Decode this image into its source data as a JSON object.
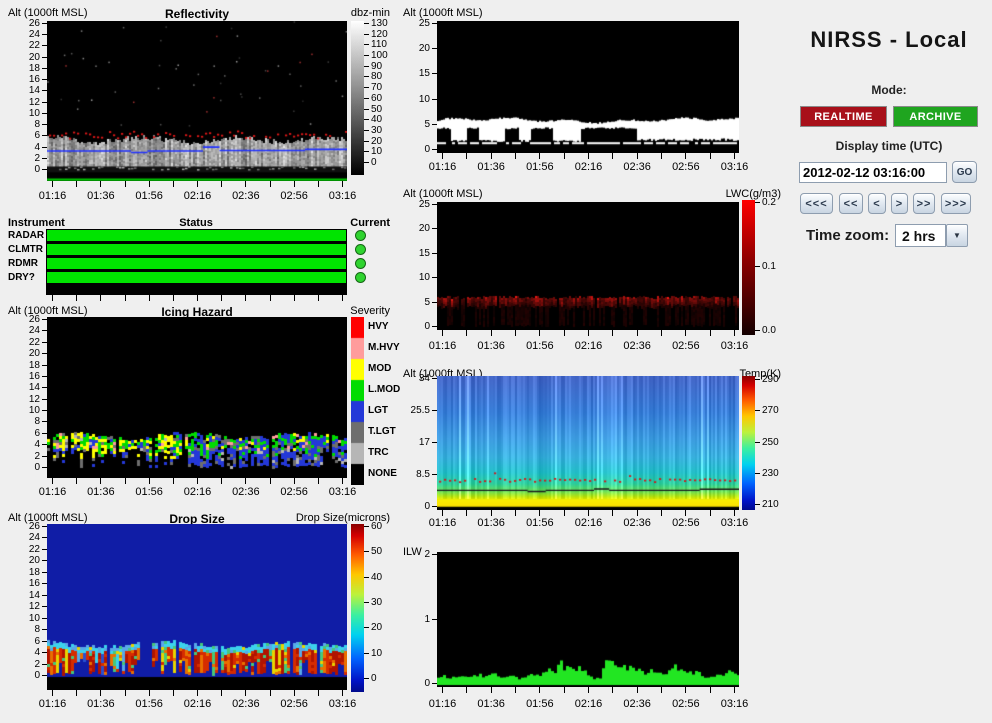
{
  "app": {
    "title": "NIRSS - Local"
  },
  "controls": {
    "mode_label": "Mode:",
    "realtime_label": "REALTIME",
    "archive_label": "ARCHIVE",
    "realtime_color": "#a8101a",
    "archive_color": "#1fa51f",
    "display_time_label": "Display time (UTC)",
    "display_time_value": "2012-02-12 03:16:00",
    "go_label": "GO",
    "nav_buttons": [
      "<<<",
      "<<",
      "<",
      ">",
      ">>",
      ">>>"
    ],
    "time_zoom_label": "Time zoom:",
    "time_zoom_value": "2 hrs"
  },
  "time_axis": {
    "labels": [
      "01:16",
      "01:36",
      "01:56",
      "02:16",
      "02:36",
      "02:56",
      "03:16"
    ]
  },
  "status_panel": {
    "headers": [
      "Instrument",
      "Status",
      "Current"
    ],
    "rows": [
      "RADAR",
      "CLMTR",
      "RDMR",
      "DRY?"
    ],
    "bar_color": "#00e400",
    "indicator_color": "#2fd32f"
  },
  "plots": {
    "reflectivity": {
      "alt_label": "Alt (1000ft MSL)",
      "title": "Reflectivity",
      "yticks": [
        [
          "26",
          26
        ],
        [
          "24",
          24
        ],
        [
          "22",
          22
        ],
        [
          "20",
          20
        ],
        [
          "18",
          18
        ],
        [
          "16",
          16
        ],
        [
          "14",
          14
        ],
        [
          "12",
          12
        ],
        [
          "10",
          10
        ],
        [
          "8",
          8
        ],
        [
          "6",
          6
        ],
        [
          "4",
          4
        ],
        [
          "2",
          2
        ],
        [
          "0",
          0
        ]
      ],
      "colorbar": {
        "label": "dbz-min",
        "type": "gray",
        "ticks": [
          "130",
          "120",
          "110",
          "100",
          "90",
          "80",
          "70",
          "60",
          "50",
          "40",
          "30",
          "20",
          "10",
          "0"
        ]
      },
      "seed": 11,
      "data": {
        "cloud_top": 5.1,
        "red_dots_alt": 6.2,
        "green_line_color": "#00c400",
        "blue_line": [
          {
            "t0": 0,
            "t1": 0.28,
            "alt": 3.2
          },
          {
            "t0": 0.28,
            "t1": 0.335,
            "alt": 2.95
          },
          {
            "t0": 0.335,
            "t1": 0.52,
            "alt": 3.2
          },
          {
            "t0": 0.52,
            "t1": 0.575,
            "alt": 3.9
          },
          {
            "t0": 0.575,
            "t1": 0.86,
            "alt": 3.3
          },
          {
            "t0": 0.86,
            "t1": 1,
            "alt": 3.5
          }
        ]
      }
    },
    "icing": {
      "alt_label": "Alt (1000ft MSL)",
      "title": "Icing Hazard",
      "yticks": [
        [
          "26",
          26
        ],
        [
          "24",
          24
        ],
        [
          "22",
          22
        ],
        [
          "20",
          20
        ],
        [
          "18",
          18
        ],
        [
          "16",
          16
        ],
        [
          "14",
          14
        ],
        [
          "12",
          12
        ],
        [
          "10",
          10
        ],
        [
          "8",
          8
        ],
        [
          "6",
          6
        ],
        [
          "4",
          4
        ],
        [
          "2",
          2
        ],
        [
          "0",
          0
        ]
      ],
      "colorbar": {
        "header": "Severity",
        "type": "categories",
        "categories": [
          {
            "label": "HVY",
            "color": "#ff0000"
          },
          {
            "label": "M.HVY",
            "color": "#ff9c9c"
          },
          {
            "label": "MOD",
            "color": "#ffff00"
          },
          {
            "label": "L.MOD",
            "color": "#00dc00"
          },
          {
            "label": "LGT",
            "color": "#2438d8"
          },
          {
            "label": "T.LGT",
            "color": "#6e6e6e"
          },
          {
            "label": "TRC",
            "color": "#b6b6b6"
          },
          {
            "label": "NONE",
            "color": "#000000"
          }
        ]
      },
      "seed": 23,
      "data": {
        "cloud_top": 5.3
      }
    },
    "dropsize": {
      "alt_label": "Alt (1000ft MSL)",
      "title": "Drop Size",
      "yticks": [
        [
          "26",
          26
        ],
        [
          "24",
          24
        ],
        [
          "22",
          22
        ],
        [
          "20",
          20
        ],
        [
          "18",
          18
        ],
        [
          "16",
          16
        ],
        [
          "14",
          14
        ],
        [
          "12",
          12
        ],
        [
          "10",
          10
        ],
        [
          "8",
          8
        ],
        [
          "6",
          6
        ],
        [
          "4",
          4
        ],
        [
          "2",
          2
        ],
        [
          "0",
          0
        ]
      ],
      "colorbar": {
        "label": "Drop Size(microns)",
        "type": "jet",
        "ticks": [
          "60",
          "50",
          "40",
          "30",
          "20",
          "10",
          "0"
        ]
      },
      "seed": 37,
      "data": {
        "bg": "#101da6",
        "cloud_top": 5.2,
        "colors": {
          "darkred": "#b01400",
          "red": "#d62c00",
          "orange": "#e87000",
          "yellow": "#e8d400",
          "green": "#46c87a",
          "cyan": "#3cd2ec",
          "ltblue": "#58a8e8",
          "blue": "#2a50d0"
        }
      }
    },
    "cloud": {
      "alt_label": "Alt (1000ft MSL)",
      "yticks": [
        [
          "25",
          25
        ],
        [
          "20",
          20
        ],
        [
          "15",
          15
        ],
        [
          "10",
          10
        ],
        [
          "5",
          5
        ],
        [
          "0",
          0
        ]
      ],
      "seed": 51,
      "data": {
        "cloud_top": 5.7,
        "line_alt": 1.35,
        "color": "#ffffff"
      }
    },
    "lwc": {
      "alt_label": "Alt (1000ft MSL)",
      "yticks": [
        [
          "25",
          25
        ],
        [
          "20",
          20
        ],
        [
          "15",
          15
        ],
        [
          "10",
          10
        ],
        [
          "5",
          5
        ],
        [
          "0",
          0
        ]
      ],
      "colorbar": {
        "label": "LWC(g/m3)",
        "type": "red",
        "ticks": [
          "0.2",
          "0.1",
          "0.0"
        ]
      },
      "seed": 67,
      "data": {
        "band_bottom": 4.0,
        "band_top": 5.8
      }
    },
    "temp": {
      "alt_label": "Alt (1000ft MSL)",
      "yticks": [
        [
          "34",
          34
        ],
        [
          "25.5",
          25.5
        ],
        [
          "17",
          17
        ],
        [
          "8.5",
          8.5
        ],
        [
          "0",
          0
        ]
      ],
      "colorbar": {
        "label": "Temp(K)",
        "type": "jet",
        "ticks": [
          "290",
          "270",
          "250",
          "230",
          "210"
        ]
      },
      "seed": 83,
      "data": {
        "stops": [
          [
            0,
            252,
            226,
            0
          ],
          [
            1.6,
            250,
            238,
            0
          ],
          [
            2.6,
            190,
            232,
            20
          ],
          [
            4,
            110,
            225,
            90
          ],
          [
            6,
            50,
            210,
            160
          ],
          [
            9,
            40,
            195,
            205
          ],
          [
            13,
            60,
            180,
            225
          ],
          [
            18,
            65,
            160,
            228
          ],
          [
            25,
            60,
            130,
            220
          ],
          [
            34,
            72,
            108,
            205
          ]
        ],
        "red_dots_alt": 7.0,
        "line_segments": [
          {
            "t0": 0,
            "t1": 0.3,
            "alt": 4.15
          },
          {
            "t0": 0.3,
            "t1": 0.36,
            "alt": 3.85
          },
          {
            "t0": 0.36,
            "t1": 0.52,
            "alt": 4.15
          },
          {
            "t0": 0.52,
            "t1": 0.57,
            "alt": 4.5
          },
          {
            "t0": 0.57,
            "t1": 0.87,
            "alt": 4.15
          },
          {
            "t0": 0.87,
            "t1": 1,
            "alt": 4.45
          }
        ]
      }
    },
    "ilw": {
      "alt_label": "ILW",
      "yticks": [
        [
          "2",
          2
        ],
        [
          "1",
          1
        ],
        [
          "0",
          0
        ]
      ],
      "seed": 97,
      "data": {
        "color": "#22e622",
        "values": [
          0.08,
          0.12,
          0.06,
          0.1,
          0.09,
          0.13,
          0.08,
          0.1,
          0.14,
          0.08,
          0.12,
          0.15,
          0.1,
          0.08,
          0.12,
          0.09,
          0.07,
          0.1,
          0.13,
          0.1,
          0.12,
          0.18,
          0.25,
          0.15,
          0.32,
          0.22,
          0.28,
          0.2,
          0.24,
          0.18,
          0.1,
          0.06,
          0.08,
          0.3,
          0.33,
          0.25,
          0.28,
          0.22,
          0.25,
          0.2,
          0.18,
          0.15,
          0.2,
          0.14,
          0.16,
          0.12,
          0.22,
          0.25,
          0.18,
          0.2,
          0.15,
          0.18,
          0.12,
          0.08,
          0.1,
          0.14,
          0.12,
          0.16,
          0.18,
          0.14
        ]
      }
    }
  }
}
